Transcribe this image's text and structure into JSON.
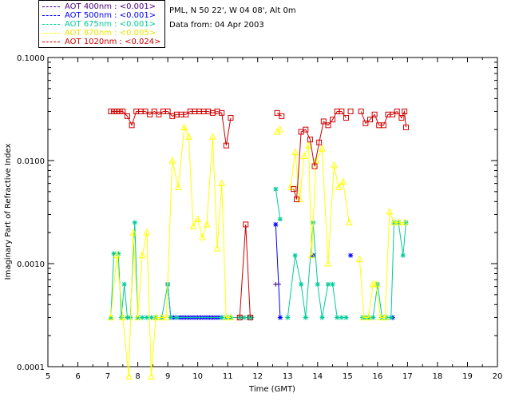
{
  "header": {
    "site": "PML, N 50 22', W 04 08', Alt 0m",
    "date_line": "Data from: 04 Apr 2003"
  },
  "legend": [
    {
      "label": "AOT  400nm : <0.001>",
      "color": "#4b0082"
    },
    {
      "label": "AOT  500nm : <0.001>",
      "color": "#0000ff"
    },
    {
      "label": "AOT  675nm : <0.001>",
      "color": "#00cc99"
    },
    {
      "label": "AOT  870nm : <0.005>",
      "color": "#ffff00"
    },
    {
      "label": "AOT 1020nm : <0.024>",
      "color": "#cc0000"
    }
  ],
  "chart_data": {
    "type": "line",
    "title": "",
    "xlabel": "Time (GMT)",
    "ylabel": "Imaginary Part of Refractive Index",
    "xlim": [
      5,
      20
    ],
    "ylim": [
      0.0001,
      0.1
    ],
    "yscale": "log",
    "xticks": [
      "5",
      "6",
      "7",
      "8",
      "9",
      "10",
      "11",
      "12",
      "13",
      "14",
      "15",
      "16",
      "17",
      "18",
      "19",
      "20"
    ],
    "yticks": [
      "0.0001",
      "0.0010",
      "0.0100",
      "0.1000"
    ],
    "series": [
      {
        "name": "AOT 400nm",
        "color": "#4b0082",
        "marker": "plus",
        "segments": [
          [
            [
              12.6,
              0.00063
            ],
            [
              12.7,
              0.00063
            ]
          ]
        ]
      },
      {
        "name": "AOT 500nm",
        "color": "#0000ff",
        "marker": "star",
        "segments": [
          [
            [
              9.0,
              0.00063
            ],
            [
              9.1,
              0.0003
            ],
            [
              9.2,
              0.0003
            ],
            [
              9.3,
              0.0003
            ],
            [
              9.4,
              0.0003
            ],
            [
              9.5,
              0.0003
            ],
            [
              9.6,
              0.0003
            ],
            [
              9.7,
              0.0003
            ],
            [
              9.8,
              0.0003
            ],
            [
              9.9,
              0.0003
            ],
            [
              10.0,
              0.0003
            ],
            [
              10.1,
              0.0003
            ],
            [
              10.2,
              0.0003
            ],
            [
              10.3,
              0.0003
            ],
            [
              10.4,
              0.0003
            ],
            [
              10.5,
              0.0003
            ],
            [
              10.6,
              0.0003
            ],
            [
              10.7,
              0.0003
            ],
            [
              10.8,
              0.0003
            ]
          ],
          [
            [
              12.6,
              0.0024
            ],
            [
              12.75,
              0.0003
            ]
          ],
          [
            [
              13.85,
              0.0012
            ]
          ],
          [
            [
              15.1,
              0.0012
            ]
          ],
          [
            [
              16.5,
              0.0003
            ]
          ]
        ]
      },
      {
        "name": "AOT 675nm",
        "color": "#00cc99",
        "marker": "star",
        "segments": [
          [
            [
              7.1,
              0.0003
            ],
            [
              7.2,
              0.00125
            ],
            [
              7.35,
              0.00125
            ],
            [
              7.45,
              0.0003
            ],
            [
              7.55,
              0.00063
            ],
            [
              7.65,
              0.0003
            ],
            [
              7.75,
              0.0003
            ],
            [
              7.9,
              0.0025
            ],
            [
              8.0,
              0.0003
            ],
            [
              8.15,
              0.0003
            ],
            [
              8.3,
              0.0003
            ],
            [
              8.45,
              0.0003
            ],
            [
              8.6,
              0.0003
            ],
            [
              8.8,
              0.0003
            ],
            [
              9.0,
              0.00063
            ],
            [
              9.1,
              0.0003
            ],
            [
              9.3,
              0.0003
            ],
            [
              10.8,
              0.0003
            ],
            [
              10.95,
              0.0003
            ],
            [
              11.1,
              0.0003
            ],
            [
              11.4,
              0.0003
            ],
            [
              11.55,
              0.0003
            ],
            [
              11.7,
              0.0003
            ],
            [
              11.8,
              0.0003
            ]
          ],
          [
            [
              12.6,
              0.0053
            ],
            [
              12.75,
              0.0027
            ]
          ],
          [
            [
              13.0,
              0.0003
            ],
            [
              13.25,
              0.0012
            ],
            [
              13.45,
              0.00063
            ],
            [
              13.6,
              0.0003
            ],
            [
              13.85,
              0.0025
            ],
            [
              14.0,
              0.00063
            ],
            [
              14.15,
              0.0003
            ],
            [
              14.35,
              0.00063
            ],
            [
              14.5,
              0.00063
            ],
            [
              14.65,
              0.0003
            ],
            [
              14.8,
              0.0003
            ],
            [
              14.95,
              0.0003
            ]
          ],
          [
            [
              15.5,
              0.0003
            ],
            [
              15.6,
              0.0003
            ],
            [
              15.7,
              0.0003
            ],
            [
              15.85,
              0.0003
            ],
            [
              16.0,
              0.00063
            ],
            [
              16.15,
              0.0003
            ],
            [
              16.3,
              0.0003
            ],
            [
              16.45,
              0.0003
            ],
            [
              16.55,
              0.0025
            ],
            [
              16.7,
              0.0025
            ],
            [
              16.85,
              0.0012
            ],
            [
              16.95,
              0.0025
            ]
          ]
        ]
      },
      {
        "name": "AOT 870nm",
        "color": "#ffff00",
        "marker": "triangle",
        "segments": [
          [
            [
              7.1,
              0.0003
            ],
            [
              7.3,
              0.0012
            ],
            [
              7.5,
              0.0003
            ],
            [
              7.7,
              8e-05
            ],
            [
              7.85,
              0.002
            ],
            [
              8.0,
              0.0003
            ],
            [
              8.15,
              0.0012
            ],
            [
              8.3,
              0.002
            ],
            [
              8.45,
              8e-05
            ],
            [
              8.6,
              0.0003
            ],
            [
              8.8,
              0.0003
            ],
            [
              8.95,
              0.0003
            ],
            [
              9.15,
              0.01
            ],
            [
              9.35,
              0.0055
            ],
            [
              9.55,
              0.021
            ],
            [
              9.7,
              0.017
            ],
            [
              9.85,
              0.0023
            ],
            [
              10.0,
              0.0027
            ],
            [
              10.15,
              0.0018
            ],
            [
              10.3,
              0.0024
            ],
            [
              10.5,
              0.017
            ],
            [
              10.65,
              0.0014
            ],
            [
              10.8,
              0.006
            ],
            [
              10.95,
              0.0003
            ],
            [
              11.1,
              0.0003
            ]
          ],
          [
            [
              12.65,
              0.019
            ],
            [
              12.75,
              0.02
            ]
          ],
          [
            [
              13.1,
              0.0055
            ],
            [
              13.25,
              0.012
            ],
            [
              13.4,
              0.0042
            ],
            [
              13.55,
              0.011
            ],
            [
              13.7,
              0.014
            ],
            [
              13.8,
              0.0012
            ],
            [
              13.95,
              0.01
            ],
            [
              14.15,
              0.013
            ],
            [
              14.35,
              0.001
            ],
            [
              14.55,
              0.009
            ],
            [
              14.7,
              0.0055
            ],
            [
              14.85,
              0.0062
            ],
            [
              15.05,
              0.0025
            ]
          ],
          [
            [
              15.4,
              0.0011
            ],
            [
              15.55,
              0.0003
            ],
            [
              15.7,
              0.0003
            ],
            [
              15.85,
              0.00063
            ],
            [
              15.95,
              0.00063
            ],
            [
              16.1,
              0.0003
            ],
            [
              16.25,
              0.0003
            ],
            [
              16.4,
              0.0032
            ],
            [
              16.55,
              0.0025
            ],
            [
              16.7,
              0.0025
            ],
            [
              16.9,
              0.0025
            ]
          ]
        ]
      },
      {
        "name": "AOT 1020nm",
        "color": "#cc0000",
        "marker": "square",
        "segments": [
          [
            [
              7.1,
              0.03
            ],
            [
              7.2,
              0.03
            ],
            [
              7.3,
              0.03
            ],
            [
              7.4,
              0.03
            ],
            [
              7.5,
              0.03
            ],
            [
              7.65,
              0.027
            ],
            [
              7.8,
              0.022
            ],
            [
              7.95,
              0.03
            ],
            [
              8.1,
              0.03
            ],
            [
              8.25,
              0.03
            ],
            [
              8.4,
              0.028
            ],
            [
              8.55,
              0.03
            ],
            [
              8.7,
              0.028
            ],
            [
              8.85,
              0.03
            ],
            [
              9.0,
              0.03
            ],
            [
              9.15,
              0.027
            ],
            [
              9.3,
              0.028
            ],
            [
              9.45,
              0.028
            ],
            [
              9.6,
              0.028
            ],
            [
              9.75,
              0.03
            ],
            [
              9.9,
              0.03
            ],
            [
              10.05,
              0.03
            ],
            [
              10.2,
              0.03
            ],
            [
              10.35,
              0.03
            ],
            [
              10.5,
              0.029
            ],
            [
              10.65,
              0.03
            ],
            [
              10.8,
              0.029
            ],
            [
              10.95,
              0.014
            ],
            [
              11.1,
              0.026
            ]
          ],
          [
            [
              11.4,
              0.0003
            ],
            [
              11.6,
              0.0024
            ],
            [
              11.75,
              0.0003
            ]
          ],
          [
            [
              12.65,
              0.029
            ],
            [
              12.8,
              0.027
            ]
          ],
          [
            [
              13.2,
              0.0053
            ],
            [
              13.3,
              0.0042
            ],
            [
              13.45,
              0.019
            ],
            [
              13.6,
              0.02
            ],
            [
              13.75,
              0.016
            ],
            [
              13.9,
              0.0088
            ],
            [
              14.05,
              0.015
            ],
            [
              14.2,
              0.024
            ],
            [
              14.35,
              0.022
            ],
            [
              14.5,
              0.025
            ],
            [
              14.65,
              0.03
            ],
            [
              14.8,
              0.03
            ],
            [
              14.95,
              0.026
            ]
          ],
          [
            [
              15.1,
              0.03
            ]
          ],
          [
            [
              15.45,
              0.03
            ],
            [
              15.6,
              0.023
            ],
            [
              15.75,
              0.025
            ],
            [
              15.9,
              0.028
            ],
            [
              16.05,
              0.022
            ],
            [
              16.2,
              0.022
            ],
            [
              16.35,
              0.028
            ],
            [
              16.5,
              0.028
            ],
            [
              16.65,
              0.03
            ],
            [
              16.8,
              0.026
            ],
            [
              16.9,
              0.03
            ],
            [
              16.95,
              0.021
            ]
          ]
        ]
      }
    ]
  }
}
